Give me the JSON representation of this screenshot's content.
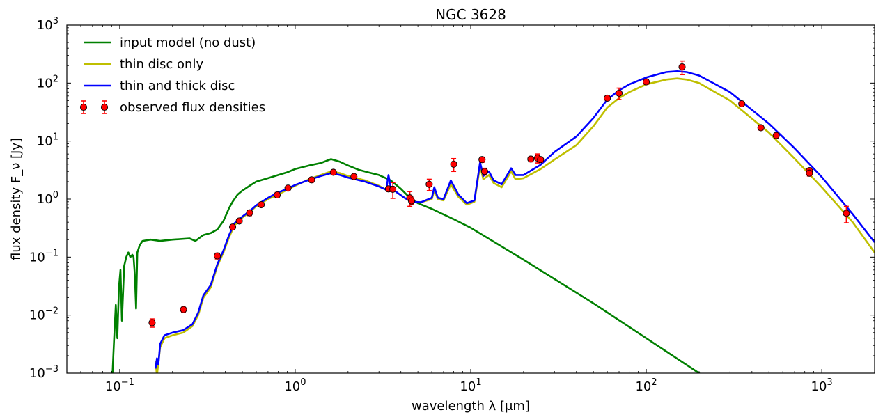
{
  "chart_data": {
    "type": "line",
    "title": "NGC 3628",
    "xlabel": "wavelength λ [μm]",
    "ylabel": "flux density F_ν [Jy]",
    "x_scale": "log",
    "y_scale": "log",
    "xlim": [
      0.05,
      2000
    ],
    "ylim": [
      0.001,
      1000
    ],
    "grid": false,
    "legend_position": "top-left",
    "x_ticks": [
      {
        "value": 0.1,
        "base": "10",
        "exp": "−1"
      },
      {
        "value": 1,
        "base": "10",
        "exp": "0"
      },
      {
        "value": 10,
        "base": "10",
        "exp": "1"
      },
      {
        "value": 100,
        "base": "10",
        "exp": "2"
      },
      {
        "value": 1000,
        "base": "10",
        "exp": "3"
      }
    ],
    "y_ticks": [
      {
        "value": 0.001,
        "base": "10",
        "exp": "−3"
      },
      {
        "value": 0.01,
        "base": "10",
        "exp": "−2"
      },
      {
        "value": 0.1,
        "base": "10",
        "exp": "−1"
      },
      {
        "value": 1,
        "base": "10",
        "exp": "0"
      },
      {
        "value": 10,
        "base": "10",
        "exp": "1"
      },
      {
        "value": 100,
        "base": "10",
        "exp": "2"
      },
      {
        "value": 1000,
        "base": "10",
        "exp": "3"
      }
    ],
    "series": [
      {
        "name": "input model (no dust)",
        "color": "#008000",
        "points": [
          [
            0.091,
            0.001
          ],
          [
            0.093,
            0.004
          ],
          [
            0.095,
            0.015
          ],
          [
            0.097,
            0.004
          ],
          [
            0.099,
            0.03
          ],
          [
            0.101,
            0.06
          ],
          [
            0.103,
            0.008
          ],
          [
            0.106,
            0.07
          ],
          [
            0.109,
            0.1
          ],
          [
            0.112,
            0.12
          ],
          [
            0.115,
            0.1
          ],
          [
            0.118,
            0.11
          ],
          [
            0.12,
            0.1
          ],
          [
            0.122,
            0.05
          ],
          [
            0.124,
            0.013
          ],
          [
            0.126,
            0.12
          ],
          [
            0.13,
            0.16
          ],
          [
            0.135,
            0.19
          ],
          [
            0.15,
            0.2
          ],
          [
            0.17,
            0.19
          ],
          [
            0.2,
            0.2
          ],
          [
            0.25,
            0.21
          ],
          [
            0.27,
            0.19
          ],
          [
            0.3,
            0.24
          ],
          [
            0.33,
            0.26
          ],
          [
            0.36,
            0.3
          ],
          [
            0.39,
            0.42
          ],
          [
            0.42,
            0.7
          ],
          [
            0.44,
            0.9
          ],
          [
            0.47,
            1.2
          ],
          [
            0.5,
            1.4
          ],
          [
            0.55,
            1.7
          ],
          [
            0.6,
            2.0
          ],
          [
            0.7,
            2.3
          ],
          [
            0.8,
            2.6
          ],
          [
            0.9,
            2.9
          ],
          [
            1.0,
            3.3
          ],
          [
            1.2,
            3.8
          ],
          [
            1.4,
            4.2
          ],
          [
            1.6,
            4.9
          ],
          [
            1.8,
            4.4
          ],
          [
            2.0,
            3.8
          ],
          [
            2.3,
            3.2
          ],
          [
            2.6,
            2.9
          ],
          [
            3.0,
            2.6
          ],
          [
            3.5,
            2.1
          ],
          [
            4.0,
            1.5
          ],
          [
            4.5,
            1.05
          ],
          [
            5.0,
            0.85
          ],
          [
            6.0,
            0.68
          ],
          [
            8.0,
            0.45
          ],
          [
            10.0,
            0.32
          ],
          [
            20.0,
            0.09
          ],
          [
            50.0,
            0.016
          ],
          [
            100.0,
            0.004
          ],
          [
            200.0,
            0.001
          ],
          [
            250.0,
            0.00063
          ]
        ]
      },
      {
        "name": "thin disc only",
        "color": "#bfbf00",
        "points": [
          [
            0.16,
            0.0016
          ],
          [
            0.163,
            0.0009
          ],
          [
            0.166,
            0.0015
          ],
          [
            0.17,
            0.0028
          ],
          [
            0.18,
            0.004
          ],
          [
            0.2,
            0.0045
          ],
          [
            0.23,
            0.005
          ],
          [
            0.26,
            0.0065
          ],
          [
            0.28,
            0.01
          ],
          [
            0.3,
            0.02
          ],
          [
            0.33,
            0.03
          ],
          [
            0.36,
            0.07
          ],
          [
            0.39,
            0.12
          ],
          [
            0.42,
            0.22
          ],
          [
            0.45,
            0.35
          ],
          [
            0.5,
            0.48
          ],
          [
            0.55,
            0.6
          ],
          [
            0.6,
            0.75
          ],
          [
            0.7,
            1.0
          ],
          [
            0.8,
            1.2
          ],
          [
            0.9,
            1.45
          ],
          [
            1.0,
            1.7
          ],
          [
            1.2,
            2.2
          ],
          [
            1.4,
            2.6
          ],
          [
            1.6,
            3.0
          ],
          [
            1.8,
            2.8
          ],
          [
            2.0,
            2.5
          ],
          [
            2.5,
            2.1
          ],
          [
            3.0,
            1.7
          ],
          [
            3.3,
            1.45
          ],
          [
            3.5,
            1.6
          ],
          [
            3.8,
            1.3
          ],
          [
            4.2,
            1.05
          ],
          [
            4.6,
            0.9
          ],
          [
            5.2,
            0.88
          ],
          [
            6.0,
            1.0
          ],
          [
            6.2,
            1.4
          ],
          [
            6.5,
            1.0
          ],
          [
            7.0,
            0.95
          ],
          [
            7.7,
            1.8
          ],
          [
            8.5,
            1.1
          ],
          [
            9.5,
            0.8
          ],
          [
            10.5,
            0.9
          ],
          [
            11.3,
            3.7
          ],
          [
            11.8,
            2.2
          ],
          [
            12.7,
            2.6
          ],
          [
            13.5,
            1.9
          ],
          [
            15.0,
            1.6
          ],
          [
            17.0,
            3.0
          ],
          [
            18.0,
            2.2
          ],
          [
            20.0,
            2.3
          ],
          [
            25.0,
            3.3
          ],
          [
            30.0,
            4.8
          ],
          [
            40.0,
            8.5
          ],
          [
            50.0,
            18.0
          ],
          [
            60.0,
            38.0
          ],
          [
            70.0,
            55.0
          ],
          [
            80.0,
            70.0
          ],
          [
            100.0,
            95.0
          ],
          [
            130.0,
            115.0
          ],
          [
            150.0,
            120.0
          ],
          [
            170.0,
            115.0
          ],
          [
            200.0,
            100.0
          ],
          [
            300.0,
            50.0
          ],
          [
            500.0,
            14.0
          ],
          [
            700.0,
            5.0
          ],
          [
            1000.0,
            1.6
          ],
          [
            1500.0,
            0.4
          ],
          [
            2000.0,
            0.12
          ]
        ]
      },
      {
        "name": "thin and thick disc",
        "color": "#0000ff",
        "points": [
          [
            0.16,
            0.0012
          ],
          [
            0.163,
            0.0018
          ],
          [
            0.166,
            0.0014
          ],
          [
            0.17,
            0.0032
          ],
          [
            0.18,
            0.0045
          ],
          [
            0.2,
            0.005
          ],
          [
            0.23,
            0.0055
          ],
          [
            0.26,
            0.007
          ],
          [
            0.28,
            0.011
          ],
          [
            0.3,
            0.022
          ],
          [
            0.33,
            0.033
          ],
          [
            0.36,
            0.075
          ],
          [
            0.39,
            0.13
          ],
          [
            0.42,
            0.24
          ],
          [
            0.45,
            0.38
          ],
          [
            0.5,
            0.5
          ],
          [
            0.55,
            0.62
          ],
          [
            0.6,
            0.78
          ],
          [
            0.7,
            1.05
          ],
          [
            0.8,
            1.3
          ],
          [
            0.9,
            1.5
          ],
          [
            1.0,
            1.75
          ],
          [
            1.2,
            2.15
          ],
          [
            1.4,
            2.5
          ],
          [
            1.6,
            2.8
          ],
          [
            1.8,
            2.6
          ],
          [
            2.0,
            2.35
          ],
          [
            2.5,
            2.0
          ],
          [
            3.0,
            1.65
          ],
          [
            3.3,
            1.45
          ],
          [
            3.4,
            2.6
          ],
          [
            3.5,
            1.6
          ],
          [
            3.8,
            1.3
          ],
          [
            4.2,
            1.05
          ],
          [
            4.6,
            0.9
          ],
          [
            5.2,
            0.88
          ],
          [
            6.0,
            1.05
          ],
          [
            6.2,
            1.6
          ],
          [
            6.5,
            1.05
          ],
          [
            7.0,
            1.0
          ],
          [
            7.7,
            2.1
          ],
          [
            8.5,
            1.2
          ],
          [
            9.5,
            0.85
          ],
          [
            10.5,
            0.95
          ],
          [
            11.3,
            4.3
          ],
          [
            11.8,
            2.5
          ],
          [
            12.7,
            3.0
          ],
          [
            13.5,
            2.1
          ],
          [
            15.0,
            1.8
          ],
          [
            17.0,
            3.4
          ],
          [
            18.0,
            2.6
          ],
          [
            20.0,
            2.6
          ],
          [
            25.0,
            3.9
          ],
          [
            30.0,
            6.5
          ],
          [
            40.0,
            12.0
          ],
          [
            50.0,
            25.0
          ],
          [
            60.0,
            52.0
          ],
          [
            70.0,
            75.0
          ],
          [
            80.0,
            95.0
          ],
          [
            100.0,
            125.0
          ],
          [
            130.0,
            155.0
          ],
          [
            150.0,
            160.0
          ],
          [
            170.0,
            155.0
          ],
          [
            200.0,
            135.0
          ],
          [
            300.0,
            70.0
          ],
          [
            500.0,
            20.0
          ],
          [
            700.0,
            7.5
          ],
          [
            1000.0,
            2.4
          ],
          [
            1500.0,
            0.55
          ],
          [
            2000.0,
            0.18
          ]
        ]
      },
      {
        "name": "observed flux densities",
        "marker_color": "#ff0000",
        "errorbar_color": "#ff0000",
        "points": [
          [
            0.153,
            0.0074,
            0.0012
          ],
          [
            0.231,
            0.0125,
            0.0012
          ],
          [
            0.36,
            0.105,
            0.012
          ],
          [
            0.44,
            0.33,
            0.03
          ],
          [
            0.48,
            0.42,
            0.03
          ],
          [
            0.55,
            0.58,
            0.06
          ],
          [
            0.64,
            0.8,
            0.06
          ],
          [
            0.79,
            1.18,
            0.12
          ],
          [
            0.91,
            1.55,
            0.12
          ],
          [
            1.24,
            2.15,
            0.2
          ],
          [
            1.65,
            2.9,
            0.25
          ],
          [
            2.16,
            2.45,
            0.2
          ],
          [
            3.4,
            1.5,
            0.15
          ],
          [
            3.6,
            1.48,
            0.45
          ],
          [
            4.5,
            1.05,
            0.3
          ],
          [
            4.6,
            0.93,
            0.12
          ],
          [
            5.8,
            1.8,
            0.4
          ],
          [
            8.0,
            4.0,
            1.0
          ],
          [
            11.6,
            4.8,
            0.5
          ],
          [
            12.0,
            3.0,
            0.4
          ],
          [
            22.0,
            4.9,
            0.5
          ],
          [
            24.0,
            5.1,
            0.9
          ],
          [
            25.0,
            4.8,
            0.5
          ],
          [
            60.0,
            55.0,
            5.0
          ],
          [
            70.0,
            67.0,
            15.0
          ],
          [
            100.0,
            105.0,
            10.0
          ],
          [
            160.0,
            190.0,
            50.0
          ],
          [
            350.0,
            44.0,
            4.0
          ],
          [
            450.0,
            17.0,
            1.5
          ],
          [
            550.0,
            12.5,
            1.2
          ],
          [
            850.0,
            3.1,
            0.3
          ],
          [
            850.0,
            2.8,
            0.3
          ],
          [
            1380.0,
            0.57,
            0.18
          ]
        ]
      }
    ]
  }
}
